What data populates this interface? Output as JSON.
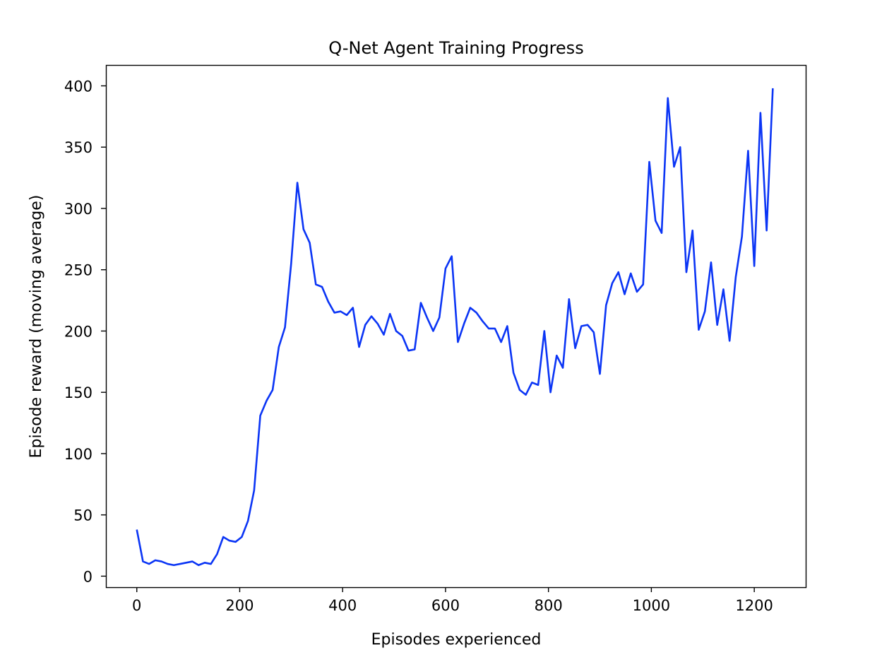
{
  "chart_data": {
    "type": "line",
    "title": "Q-Net Agent Training Progress",
    "xlabel": "Episodes experienced",
    "ylabel": "Episode reward (moving average)",
    "xlim": [
      -60,
      1300
    ],
    "ylim": [
      -9,
      417
    ],
    "x_ticks": [
      0,
      200,
      400,
      600,
      800,
      1000,
      1200
    ],
    "y_ticks": [
      0,
      50,
      100,
      150,
      200,
      250,
      300,
      350,
      400
    ],
    "grid": false,
    "series": [
      {
        "color": "#0b35f5",
        "points": [
          [
            0,
            38
          ],
          [
            12,
            12
          ],
          [
            24,
            10
          ],
          [
            36,
            13
          ],
          [
            48,
            12
          ],
          [
            60,
            10
          ],
          [
            72,
            9
          ],
          [
            84,
            10
          ],
          [
            96,
            11
          ],
          [
            108,
            12
          ],
          [
            120,
            9
          ],
          [
            132,
            11
          ],
          [
            144,
            10
          ],
          [
            156,
            18
          ],
          [
            168,
            32
          ],
          [
            180,
            29
          ],
          [
            192,
            28
          ],
          [
            204,
            32
          ],
          [
            216,
            45
          ],
          [
            228,
            70
          ],
          [
            240,
            131
          ],
          [
            252,
            143
          ],
          [
            264,
            152
          ],
          [
            276,
            187
          ],
          [
            288,
            203
          ],
          [
            300,
            255
          ],
          [
            312,
            321
          ],
          [
            324,
            283
          ],
          [
            336,
            272
          ],
          [
            348,
            238
          ],
          [
            360,
            236
          ],
          [
            372,
            224
          ],
          [
            384,
            215
          ],
          [
            396,
            216
          ],
          [
            408,
            213
          ],
          [
            420,
            219
          ],
          [
            432,
            187
          ],
          [
            444,
            205
          ],
          [
            456,
            212
          ],
          [
            468,
            206
          ],
          [
            480,
            197
          ],
          [
            492,
            214
          ],
          [
            504,
            200
          ],
          [
            516,
            196
          ],
          [
            528,
            184
          ],
          [
            540,
            185
          ],
          [
            552,
            223
          ],
          [
            564,
            211
          ],
          [
            576,
            200
          ],
          [
            588,
            211
          ],
          [
            600,
            251
          ],
          [
            612,
            261
          ],
          [
            624,
            191
          ],
          [
            636,
            206
          ],
          [
            648,
            219
          ],
          [
            660,
            215
          ],
          [
            672,
            208
          ],
          [
            684,
            202
          ],
          [
            696,
            202
          ],
          [
            708,
            191
          ],
          [
            720,
            204
          ],
          [
            732,
            166
          ],
          [
            744,
            152
          ],
          [
            756,
            148
          ],
          [
            768,
            158
          ],
          [
            780,
            156
          ],
          [
            792,
            200
          ],
          [
            804,
            150
          ],
          [
            816,
            180
          ],
          [
            828,
            170
          ],
          [
            840,
            226
          ],
          [
            852,
            186
          ],
          [
            864,
            204
          ],
          [
            876,
            205
          ],
          [
            888,
            199
          ],
          [
            900,
            165
          ],
          [
            912,
            221
          ],
          [
            924,
            239
          ],
          [
            936,
            248
          ],
          [
            948,
            230
          ],
          [
            960,
            247
          ],
          [
            972,
            232
          ],
          [
            984,
            238
          ],
          [
            996,
            338
          ],
          [
            1008,
            290
          ],
          [
            1020,
            280
          ],
          [
            1032,
            390
          ],
          [
            1044,
            334
          ],
          [
            1056,
            350
          ],
          [
            1068,
            248
          ],
          [
            1080,
            282
          ],
          [
            1092,
            201
          ],
          [
            1104,
            216
          ],
          [
            1116,
            256
          ],
          [
            1128,
            205
          ],
          [
            1140,
            234
          ],
          [
            1152,
            192
          ],
          [
            1164,
            244
          ],
          [
            1176,
            277
          ],
          [
            1188,
            347
          ],
          [
            1200,
            253
          ],
          [
            1212,
            378
          ],
          [
            1224,
            282
          ],
          [
            1236,
            398
          ]
        ]
      }
    ]
  }
}
